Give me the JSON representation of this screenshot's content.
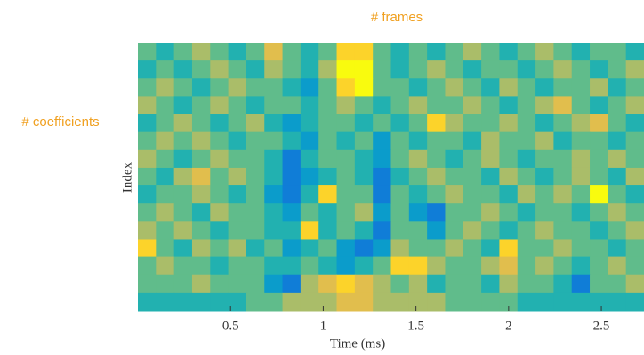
{
  "chart_data": {
    "type": "heatmap",
    "xlabel": "Time (ms)",
    "ylabel": "Index",
    "annotations": [
      "# frames",
      "# coefficients"
    ],
    "xlim": [
      0,
      2.73
    ],
    "xticks": [
      0.5,
      1,
      1.5,
      2,
      2.5
    ],
    "clim": [
      0,
      9
    ],
    "colormap": [
      "#352a87",
      "#0363e1",
      "#1485d4",
      "#06a7c6",
      "#38b99e",
      "#92bf73",
      "#d9ba56",
      "#fcce2e",
      "#f9fb0e"
    ],
    "z": [
      [
        5,
        4,
        5,
        6,
        5,
        4,
        5,
        7,
        5,
        4,
        5,
        8,
        8,
        5,
        4,
        5,
        4,
        5,
        6,
        5,
        4,
        5,
        6,
        5,
        4,
        5,
        5,
        4
      ],
      [
        4,
        5,
        4,
        5,
        6,
        5,
        4,
        6,
        5,
        4,
        6,
        9,
        9,
        5,
        4,
        5,
        6,
        5,
        4,
        5,
        5,
        4,
        5,
        6,
        5,
        4,
        5,
        6
      ],
      [
        5,
        6,
        5,
        4,
        5,
        6,
        5,
        5,
        4,
        3,
        5,
        8,
        9,
        5,
        5,
        4,
        5,
        6,
        5,
        4,
        6,
        5,
        4,
        5,
        5,
        6,
        4,
        5
      ],
      [
        6,
        5,
        4,
        5,
        6,
        5,
        4,
        5,
        5,
        4,
        5,
        6,
        5,
        4,
        5,
        6,
        5,
        5,
        6,
        5,
        4,
        5,
        6,
        7,
        5,
        4,
        5,
        6
      ],
      [
        4,
        5,
        6,
        5,
        4,
        5,
        6,
        4,
        3,
        4,
        5,
        5,
        4,
        5,
        4,
        5,
        8,
        6,
        5,
        5,
        6,
        5,
        4,
        5,
        6,
        7,
        5,
        4
      ],
      [
        5,
        6,
        5,
        6,
        5,
        4,
        5,
        5,
        4,
        3,
        5,
        4,
        5,
        3,
        5,
        4,
        5,
        5,
        4,
        6,
        5,
        5,
        6,
        4,
        5,
        5,
        4,
        5
      ],
      [
        6,
        5,
        4,
        5,
        6,
        5,
        5,
        4,
        2,
        4,
        5,
        5,
        4,
        3,
        5,
        6,
        5,
        4,
        5,
        6,
        5,
        4,
        5,
        5,
        6,
        5,
        6,
        5
      ],
      [
        5,
        4,
        6,
        7,
        5,
        6,
        5,
        4,
        2,
        3,
        4,
        5,
        4,
        2,
        4,
        5,
        6,
        5,
        5,
        4,
        6,
        5,
        4,
        5,
        6,
        5,
        4,
        6
      ],
      [
        4,
        5,
        5,
        6,
        5,
        4,
        5,
        3,
        2,
        4,
        8,
        5,
        5,
        2,
        5,
        4,
        5,
        6,
        5,
        5,
        4,
        6,
        5,
        6,
        5,
        9,
        5,
        4
      ],
      [
        5,
        6,
        5,
        4,
        6,
        5,
        5,
        4,
        3,
        5,
        4,
        5,
        6,
        3,
        5,
        3,
        2,
        5,
        5,
        6,
        5,
        4,
        5,
        5,
        4,
        5,
        6,
        5
      ],
      [
        6,
        5,
        6,
        5,
        4,
        5,
        5,
        4,
        4,
        8,
        4,
        5,
        4,
        2,
        5,
        5,
        3,
        5,
        6,
        5,
        4,
        5,
        6,
        5,
        5,
        4,
        5,
        6
      ],
      [
        8,
        5,
        4,
        6,
        5,
        6,
        4,
        5,
        3,
        4,
        5,
        3,
        2,
        3,
        6,
        5,
        5,
        6,
        5,
        4,
        8,
        5,
        5,
        6,
        5,
        5,
        4,
        5
      ],
      [
        5,
        6,
        5,
        5,
        4,
        5,
        5,
        4,
        4,
        5,
        4,
        3,
        4,
        5,
        8,
        8,
        6,
        5,
        5,
        6,
        7,
        5,
        6,
        5,
        4,
        5,
        6,
        5
      ],
      [
        5,
        5,
        5,
        6,
        5,
        5,
        5,
        3,
        2,
        6,
        7,
        8,
        7,
        6,
        5,
        6,
        4,
        5,
        5,
        4,
        6,
        5,
        5,
        4,
        2,
        5,
        5,
        6
      ],
      [
        4,
        4,
        4,
        4,
        4,
        4,
        5,
        5,
        6,
        6,
        6,
        7,
        7,
        6,
        6,
        6,
        6,
        5,
        5,
        5,
        5,
        4,
        4,
        4,
        4,
        4,
        4,
        4
      ]
    ]
  }
}
